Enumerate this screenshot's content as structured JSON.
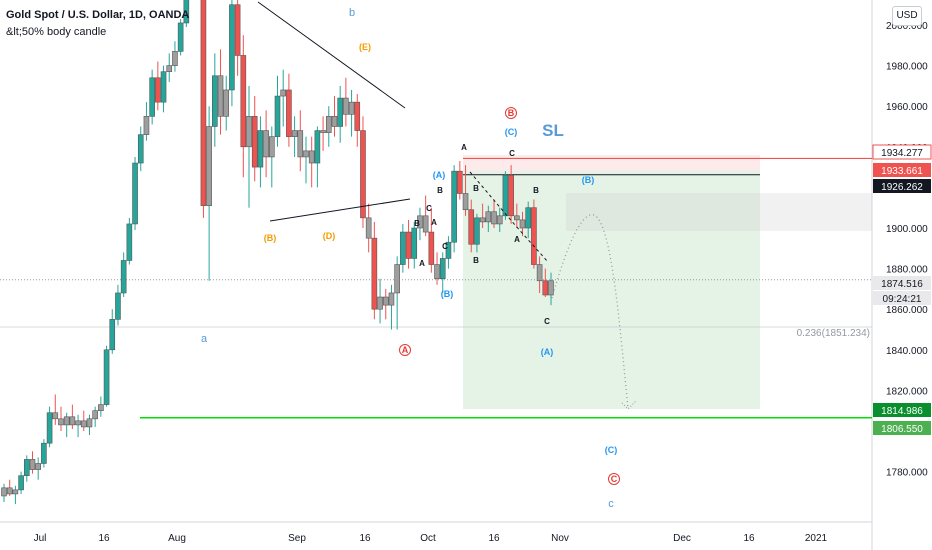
{
  "header": {
    "title": "Gold Spot / U.S. Dollar, 1D, OANDA",
    "indicator": "&lt;50% body candle",
    "currency": "USD"
  },
  "chart_data": {
    "type": "candlestick",
    "y_axis": {
      "ticks": [
        2000,
        1980,
        1960,
        1940,
        1920,
        1900,
        1880,
        1860,
        1840,
        1820,
        1800,
        1780
      ]
    },
    "x_axis": {
      "ticks": [
        "Jul",
        "16",
        "Aug",
        "Sep",
        "16",
        "Oct",
        "16",
        "Nov",
        "Dec",
        "16",
        "2021"
      ]
    },
    "price_labels": [
      {
        "value": "1934.277",
        "color": "#ef5350",
        "bg": "#ffffff",
        "text_color": "#131722"
      },
      {
        "value": "1933.661",
        "color": "#ef5350",
        "bg": "#ef5350",
        "text_color": "#ffffff"
      },
      {
        "value": "1926.262",
        "color": "#131722",
        "bg": "#131722",
        "text_color": "#ffffff"
      },
      {
        "value": "1874.516",
        "color": "#9598a1",
        "bg": "#e9e9ec",
        "text_color": "#131722"
      },
      {
        "value": "09:24:21",
        "color": "#9598a1",
        "bg": "#e9e9ec",
        "text_color": "#131722"
      },
      {
        "value": "1814.986",
        "color": "#00c800",
        "bg": "#0a8f2e",
        "text_color": "#ffffff"
      },
      {
        "value": "1806.550",
        "color": "#00e000",
        "bg": "#4caf50",
        "text_color": "#ffffff"
      }
    ],
    "fib_label": "0.236(1851.234)",
    "stop_label": "SL",
    "wave_labels": [
      {
        "text": "b",
        "color": "#5b9bd5"
      },
      {
        "text": "a",
        "color": "#5b9bd5"
      },
      {
        "text": "(E)",
        "color": "#f59b00"
      },
      {
        "text": "(B)",
        "color": "#f59b00"
      },
      {
        "text": "(D)",
        "color": "#f59b00"
      },
      {
        "text": "B",
        "color": "#e53935"
      },
      {
        "text": "A",
        "color": "#e53935"
      },
      {
        "text": "C",
        "color": "#e53935"
      },
      {
        "text": "(C)",
        "color": "#2196f3"
      },
      {
        "text": "(A)",
        "color": "#2196f3"
      },
      {
        "text": "(B)",
        "color": "#2196f3"
      },
      {
        "text": "(B)",
        "color": "#2196f3"
      },
      {
        "text": "(A)",
        "color": "#2196f3"
      },
      {
        "text": "(C)",
        "color": "#2196f3"
      },
      {
        "text": "c",
        "color": "#5b9bd5"
      },
      {
        "text": "A",
        "color": "#131722"
      },
      {
        "text": "C",
        "color": "#131722"
      },
      {
        "text": "B",
        "color": "#131722"
      },
      {
        "text": "C",
        "color": "#131722"
      },
      {
        "text": "A",
        "color": "#131722"
      },
      {
        "text": "B",
        "color": "#131722"
      },
      {
        "text": "B",
        "color": "#131722"
      },
      {
        "text": "A",
        "color": "#131722"
      },
      {
        "text": "C",
        "color": "#131722"
      },
      {
        "text": "B",
        "color": "#131722"
      },
      {
        "text": "B",
        "color": "#131722"
      },
      {
        "text": "A",
        "color": "#131722"
      },
      {
        "text": "C",
        "color": "#131722"
      }
    ],
    "colors": {
      "up": "#26a69a",
      "down": "#ef5350",
      "neutral": "#9e9e9e"
    },
    "candles": [
      {
        "o": 1768,
        "h": 1774,
        "l": 1765,
        "c": 1772
      },
      {
        "o": 1772,
        "h": 1776,
        "l": 1768,
        "c": 1769
      },
      {
        "o": 1769,
        "h": 1773,
        "l": 1764,
        "c": 1771
      },
      {
        "o": 1771,
        "h": 1780,
        "l": 1769,
        "c": 1778
      },
      {
        "o": 1778,
        "h": 1788,
        "l": 1775,
        "c": 1786
      },
      {
        "o": 1786,
        "h": 1790,
        "l": 1779,
        "c": 1781
      },
      {
        "o": 1781,
        "h": 1787,
        "l": 1776,
        "c": 1784
      },
      {
        "o": 1784,
        "h": 1796,
        "l": 1782,
        "c": 1794
      },
      {
        "o": 1794,
        "h": 1812,
        "l": 1792,
        "c": 1809
      },
      {
        "o": 1809,
        "h": 1818,
        "l": 1803,
        "c": 1806
      },
      {
        "o": 1806,
        "h": 1812,
        "l": 1800,
        "c": 1803
      },
      {
        "o": 1803,
        "h": 1809,
        "l": 1797,
        "c": 1807
      },
      {
        "o": 1807,
        "h": 1813,
        "l": 1801,
        "c": 1803
      },
      {
        "o": 1803,
        "h": 1808,
        "l": 1797,
        "c": 1805
      },
      {
        "o": 1805,
        "h": 1810,
        "l": 1800,
        "c": 1802
      },
      {
        "o": 1802,
        "h": 1808,
        "l": 1798,
        "c": 1806
      },
      {
        "o": 1806,
        "h": 1812,
        "l": 1802,
        "c": 1810
      },
      {
        "o": 1810,
        "h": 1817,
        "l": 1807,
        "c": 1813
      },
      {
        "o": 1813,
        "h": 1842,
        "l": 1812,
        "c": 1840
      },
      {
        "o": 1840,
        "h": 1860,
        "l": 1838,
        "c": 1855
      },
      {
        "o": 1855,
        "h": 1872,
        "l": 1852,
        "c": 1868
      },
      {
        "o": 1868,
        "h": 1888,
        "l": 1866,
        "c": 1884
      },
      {
        "o": 1884,
        "h": 1905,
        "l": 1882,
        "c": 1902
      },
      {
        "o": 1902,
        "h": 1935,
        "l": 1899,
        "c": 1932
      },
      {
        "o": 1932,
        "h": 1950,
        "l": 1928,
        "c": 1946
      },
      {
        "o": 1946,
        "h": 1962,
        "l": 1943,
        "c": 1955
      },
      {
        "o": 1955,
        "h": 1978,
        "l": 1951,
        "c": 1974
      },
      {
        "o": 1974,
        "h": 1982,
        "l": 1958,
        "c": 1962
      },
      {
        "o": 1962,
        "h": 1980,
        "l": 1957,
        "c": 1977
      },
      {
        "o": 1977,
        "h": 1986,
        "l": 1972,
        "c": 1980
      },
      {
        "o": 1980,
        "h": 1992,
        "l": 1977,
        "c": 1987
      },
      {
        "o": 1987,
        "h": 2003,
        "l": 1985,
        "c": 2001
      },
      {
        "o": 2001,
        "h": 2020,
        "l": 1999,
        "c": 2018
      },
      {
        "o": 2018,
        "h": 2040,
        "l": 2014,
        "c": 2036
      },
      {
        "o": 2036,
        "h": 2062,
        "l": 2030,
        "c": 2058
      },
      {
        "o": 2058,
        "h": 2075,
        "l": 1905,
        "c": 1911
      },
      {
        "o": 1911,
        "h": 1960,
        "l": 1874,
        "c": 1950
      },
      {
        "o": 1950,
        "h": 1986,
        "l": 1940,
        "c": 1975
      },
      {
        "o": 1975,
        "h": 1988,
        "l": 1946,
        "c": 1955
      },
      {
        "o": 1955,
        "h": 1975,
        "l": 1948,
        "c": 1968
      },
      {
        "o": 1968,
        "h": 2016,
        "l": 1960,
        "c": 2010
      },
      {
        "o": 2010,
        "h": 2025,
        "l": 1975,
        "c": 1985
      },
      {
        "o": 1985,
        "h": 1995,
        "l": 1925,
        "c": 1940
      },
      {
        "o": 1940,
        "h": 1970,
        "l": 1910,
        "c": 1955
      },
      {
        "o": 1955,
        "h": 1965,
        "l": 1923,
        "c": 1930
      },
      {
        "o": 1930,
        "h": 1955,
        "l": 1920,
        "c": 1948
      },
      {
        "o": 1948,
        "h": 1958,
        "l": 1925,
        "c": 1935
      },
      {
        "o": 1935,
        "h": 1950,
        "l": 1920,
        "c": 1945
      },
      {
        "o": 1945,
        "h": 1975,
        "l": 1940,
        "c": 1965
      },
      {
        "o": 1965,
        "h": 1978,
        "l": 1950,
        "c": 1968
      },
      {
        "o": 1968,
        "h": 1976,
        "l": 1940,
        "c": 1945
      },
      {
        "o": 1945,
        "h": 1955,
        "l": 1935,
        "c": 1948
      },
      {
        "o": 1948,
        "h": 1958,
        "l": 1928,
        "c": 1935
      },
      {
        "o": 1935,
        "h": 1945,
        "l": 1922,
        "c": 1938
      },
      {
        "o": 1938,
        "h": 1945,
        "l": 1920,
        "c": 1932
      },
      {
        "o": 1932,
        "h": 1950,
        "l": 1920,
        "c": 1948
      },
      {
        "o": 1948,
        "h": 1955,
        "l": 1938,
        "c": 1947
      },
      {
        "o": 1947,
        "h": 1960,
        "l": 1940,
        "c": 1955
      },
      {
        "o": 1955,
        "h": 1965,
        "l": 1945,
        "c": 1950
      },
      {
        "o": 1950,
        "h": 1970,
        "l": 1942,
        "c": 1964
      },
      {
        "o": 1964,
        "h": 1974,
        "l": 1950,
        "c": 1956
      },
      {
        "o": 1956,
        "h": 1968,
        "l": 1945,
        "c": 1962
      },
      {
        "o": 1962,
        "h": 1966,
        "l": 1940,
        "c": 1948
      },
      {
        "o": 1948,
        "h": 1955,
        "l": 1900,
        "c": 1905
      },
      {
        "o": 1905,
        "h": 1912,
        "l": 1888,
        "c": 1895
      },
      {
        "o": 1895,
        "h": 1903,
        "l": 1855,
        "c": 1860
      },
      {
        "o": 1860,
        "h": 1875,
        "l": 1853,
        "c": 1866
      },
      {
        "o": 1866,
        "h": 1870,
        "l": 1855,
        "c": 1862
      },
      {
        "o": 1862,
        "h": 1872,
        "l": 1850,
        "c": 1868
      },
      {
        "o": 1868,
        "h": 1886,
        "l": 1850,
        "c": 1882
      },
      {
        "o": 1882,
        "h": 1902,
        "l": 1878,
        "c": 1898
      },
      {
        "o": 1898,
        "h": 1904,
        "l": 1880,
        "c": 1885
      },
      {
        "o": 1885,
        "h": 1903,
        "l": 1880,
        "c": 1900
      },
      {
        "o": 1900,
        "h": 1910,
        "l": 1894,
        "c": 1906
      },
      {
        "o": 1906,
        "h": 1916,
        "l": 1896,
        "c": 1898
      },
      {
        "o": 1898,
        "h": 1910,
        "l": 1878,
        "c": 1882
      },
      {
        "o": 1882,
        "h": 1888,
        "l": 1872,
        "c": 1875
      },
      {
        "o": 1875,
        "h": 1888,
        "l": 1868,
        "c": 1885
      },
      {
        "o": 1885,
        "h": 1896,
        "l": 1880,
        "c": 1893
      },
      {
        "o": 1893,
        "h": 1931,
        "l": 1888,
        "c": 1928
      },
      {
        "o": 1928,
        "h": 1933,
        "l": 1914,
        "c": 1917
      },
      {
        "o": 1917,
        "h": 1931,
        "l": 1906,
        "c": 1909
      },
      {
        "o": 1909,
        "h": 1914,
        "l": 1888,
        "c": 1892
      },
      {
        "o": 1892,
        "h": 1907,
        "l": 1888,
        "c": 1905
      },
      {
        "o": 1905,
        "h": 1912,
        "l": 1900,
        "c": 1903
      },
      {
        "o": 1903,
        "h": 1911,
        "l": 1898,
        "c": 1908
      },
      {
        "o": 1908,
        "h": 1914,
        "l": 1900,
        "c": 1902
      },
      {
        "o": 1902,
        "h": 1910,
        "l": 1898,
        "c": 1906
      },
      {
        "o": 1906,
        "h": 1928,
        "l": 1904,
        "c": 1926
      },
      {
        "o": 1926,
        "h": 1931,
        "l": 1902,
        "c": 1906
      },
      {
        "o": 1906,
        "h": 1912,
        "l": 1900,
        "c": 1904
      },
      {
        "o": 1904,
        "h": 1908,
        "l": 1896,
        "c": 1900
      },
      {
        "o": 1900,
        "h": 1913,
        "l": 1895,
        "c": 1910
      },
      {
        "o": 1910,
        "h": 1914,
        "l": 1880,
        "c": 1882
      },
      {
        "o": 1882,
        "h": 1886,
        "l": 1868,
        "c": 1874
      },
      {
        "o": 1874,
        "h": 1880,
        "l": 1866,
        "c": 1867
      },
      {
        "o": 1867,
        "h": 1878,
        "l": 1862,
        "c": 1874
      }
    ]
  }
}
